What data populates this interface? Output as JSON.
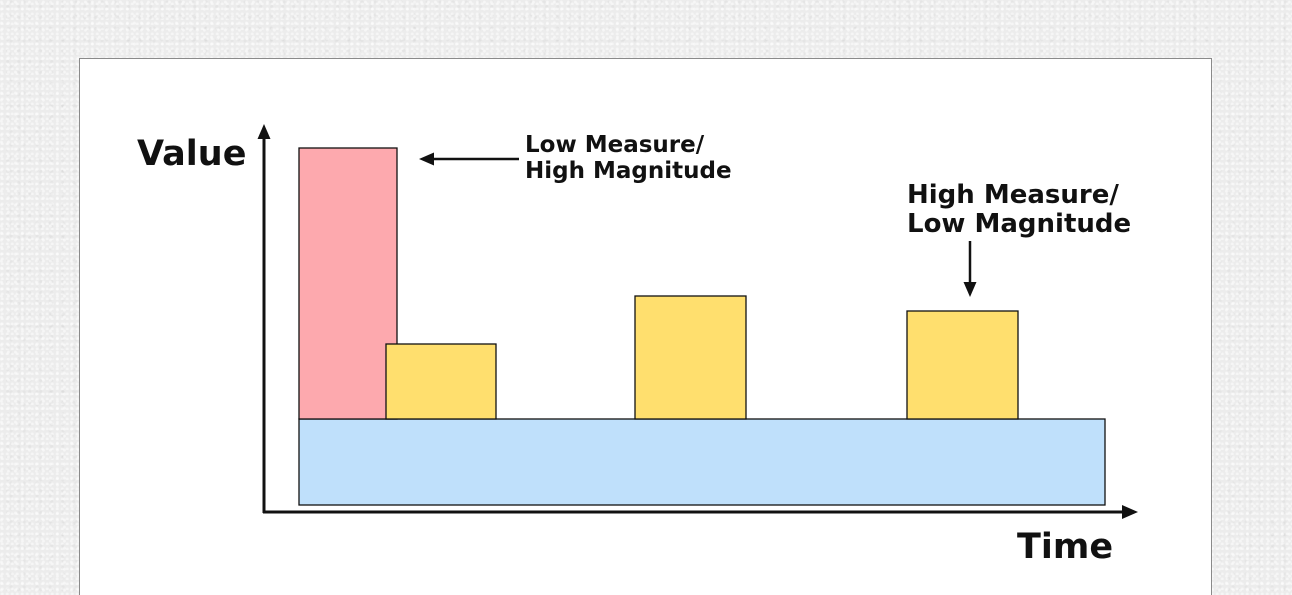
{
  "axes": {
    "y_label": "Value",
    "x_label": "Time"
  },
  "annotations": {
    "low_measure": {
      "line1": "Low Measure/",
      "line2": "High Magnitude"
    },
    "high_measure": {
      "line1": "High Measure/",
      "line2": "Low Magnitude"
    }
  },
  "colors": {
    "baseline": "#bfe0fb",
    "spike": "#fda9ae",
    "blocks": "#ffdf6e",
    "outline": "#111111"
  }
}
